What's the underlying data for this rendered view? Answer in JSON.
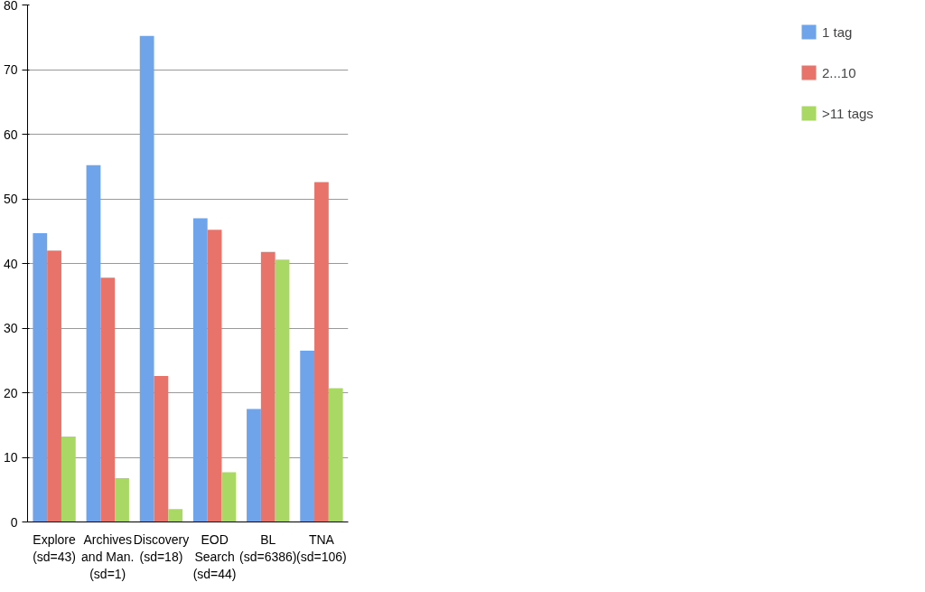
{
  "chart_data": {
    "type": "bar",
    "categories": [
      "Explore\n(sd=43)",
      "Archives\nand Man.\n(sd=1)",
      "Discovery\n(sd=18)",
      "EOD\nSearch\n(sd=44)",
      "BL\n(sd=6386)",
      "TNA\n(sd=106)"
    ],
    "series": [
      {
        "name": "1 tag",
        "color": "#6fa3ea",
        "values": [
          44.7,
          55.2,
          75.2,
          47,
          17.5,
          26.5
        ]
      },
      {
        "name": "2...10",
        "color": "#e8736b",
        "values": [
          42,
          37.8,
          22.6,
          45.2,
          41.8,
          52.6
        ]
      },
      {
        "name": ">11 tags",
        "color": "#a9d865",
        "values": [
          13.2,
          6.8,
          2,
          7.7,
          40.6,
          20.7
        ]
      }
    ],
    "ylim": [
      0,
      80
    ],
    "yticks": [
      0,
      10,
      20,
      30,
      40,
      50,
      60,
      70,
      80
    ],
    "grid": "y",
    "legend": "right"
  }
}
